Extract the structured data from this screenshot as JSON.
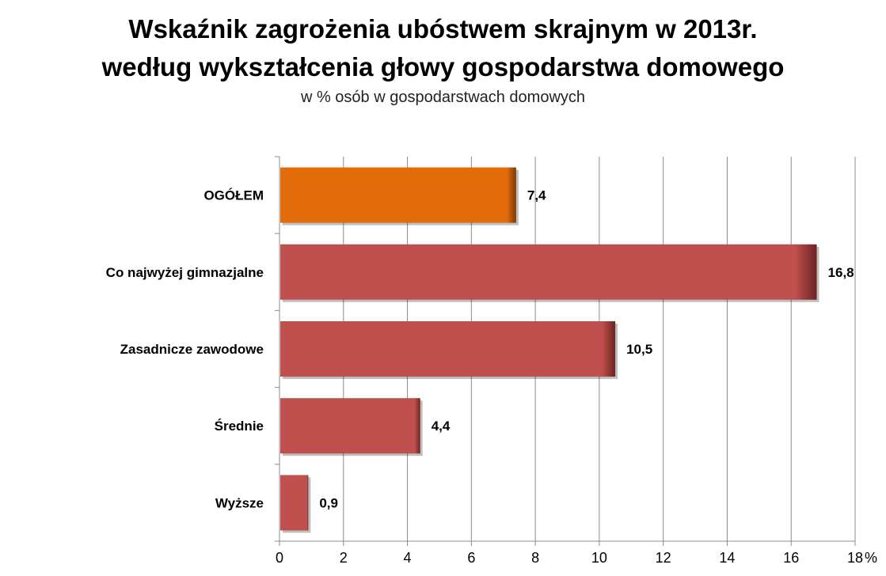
{
  "chart_data": {
    "type": "bar",
    "orientation": "horizontal",
    "title": "Wskaźnik zagrożenia ubóstwem skrajnym w 2013r.",
    "title_line2": "według wykształcenia głowy gospodarstwa domowego",
    "subtitle": "w % osób w gospodarstwach domowych",
    "categories": [
      "OGÓŁEM",
      "Co najwyżej gimnazjalne",
      "Zasadnicze zawodowe",
      "Średnie",
      "Wyższe"
    ],
    "values": [
      7.4,
      16.8,
      10.5,
      4.4,
      0.9
    ],
    "value_labels": [
      "7,4",
      "16,8",
      "10,5",
      "4,4",
      "0,9"
    ],
    "colors": [
      "#e36c0a",
      "#c0504d",
      "#c0504d",
      "#c0504d",
      "#c0504d"
    ],
    "xlim": [
      0,
      18
    ],
    "xticks": [
      "0",
      "2",
      "4",
      "6",
      "8",
      "10",
      "12",
      "14",
      "16",
      "18"
    ],
    "xunit": "%",
    "grid": true,
    "legend": "none"
  }
}
